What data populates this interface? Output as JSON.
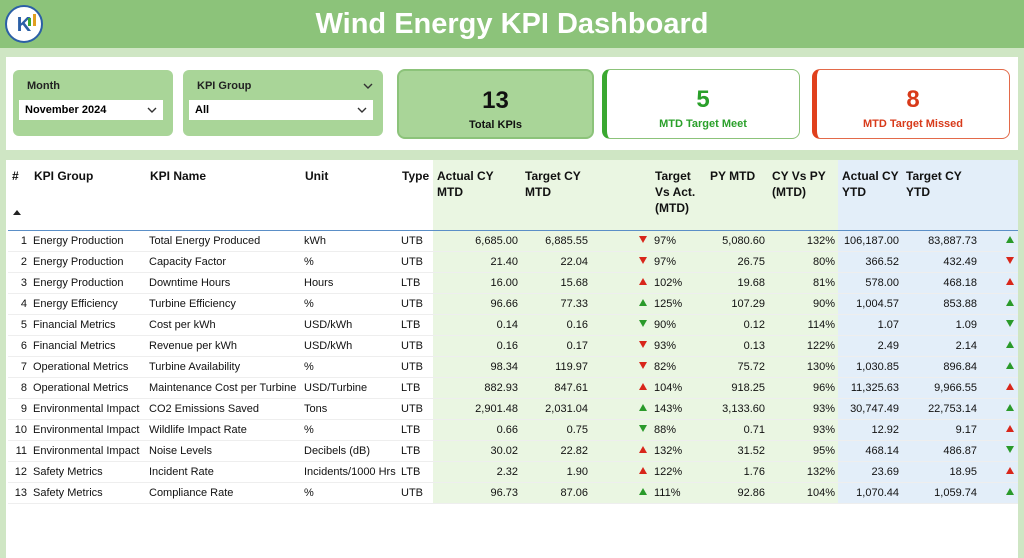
{
  "header": {
    "title": "Wind Energy KPI Dashboard"
  },
  "filters": [
    {
      "label": "Month",
      "value": "November 2024"
    },
    {
      "label": "KPI Group",
      "value": "All"
    }
  ],
  "cards": [
    {
      "value": "13",
      "label": "Total KPIs",
      "style": "total"
    },
    {
      "value": "5",
      "label": "MTD Target Meet",
      "style": "meet"
    },
    {
      "value": "8",
      "label": "MTD Target Missed",
      "style": "missed"
    }
  ],
  "table": {
    "columns": [
      "#",
      "KPI Group",
      "KPI Name",
      "Unit",
      "Type",
      "Actual CY MTD",
      "Target CY MTD",
      "Target Vs Act. (MTD)",
      "PY MTD",
      "CY Vs PY (MTD)",
      "Actual CY YTD",
      "Target CY YTD"
    ],
    "rows": [
      {
        "cells": [
          "1",
          "Energy Production",
          "Total Energy Produced",
          "kWh",
          "UTB",
          "6,685.00",
          "6,885.55",
          "97%",
          "5,080.60",
          "132%",
          "106,187.00",
          "83,887.73"
        ],
        "mtd_icon": "down-red",
        "ytd_icon": "up-green"
      },
      {
        "cells": [
          "2",
          "Energy Production",
          "Capacity Factor",
          "%",
          "UTB",
          "21.40",
          "22.04",
          "97%",
          "26.75",
          "80%",
          "366.52",
          "432.49"
        ],
        "mtd_icon": "down-red",
        "ytd_icon": "down-red"
      },
      {
        "cells": [
          "3",
          "Energy Production",
          "Downtime Hours",
          "Hours",
          "LTB",
          "16.00",
          "15.68",
          "102%",
          "19.68",
          "81%",
          "578.00",
          "468.18"
        ],
        "mtd_icon": "up-red",
        "ytd_icon": "up-red"
      },
      {
        "cells": [
          "4",
          "Energy Efficiency",
          "Turbine Efficiency",
          "%",
          "UTB",
          "96.66",
          "77.33",
          "125%",
          "107.29",
          "90%",
          "1,004.57",
          "853.88"
        ],
        "mtd_icon": "up-green",
        "ytd_icon": "up-green"
      },
      {
        "cells": [
          "5",
          "Financial Metrics",
          "Cost per kWh",
          "USD/kWh",
          "LTB",
          "0.14",
          "0.16",
          "90%",
          "0.12",
          "114%",
          "1.07",
          "1.09"
        ],
        "mtd_icon": "down-green",
        "ytd_icon": "down-green"
      },
      {
        "cells": [
          "6",
          "Financial Metrics",
          "Revenue per kWh",
          "USD/kWh",
          "UTB",
          "0.16",
          "0.17",
          "93%",
          "0.13",
          "122%",
          "2.49",
          "2.14"
        ],
        "mtd_icon": "down-red",
        "ytd_icon": "up-green"
      },
      {
        "cells": [
          "7",
          "Operational Metrics",
          "Turbine Availability",
          "%",
          "UTB",
          "98.34",
          "119.97",
          "82%",
          "75.72",
          "130%",
          "1,030.85",
          "896.84"
        ],
        "mtd_icon": "down-red",
        "ytd_icon": "up-green"
      },
      {
        "cells": [
          "8",
          "Operational Metrics",
          "Maintenance Cost per Turbine",
          "USD/Turbine",
          "LTB",
          "882.93",
          "847.61",
          "104%",
          "918.25",
          "96%",
          "11,325.63",
          "9,966.55"
        ],
        "mtd_icon": "up-red",
        "ytd_icon": "up-red"
      },
      {
        "cells": [
          "9",
          "Environmental Impact",
          "CO2 Emissions Saved",
          "Tons",
          "UTB",
          "2,901.48",
          "2,031.04",
          "143%",
          "3,133.60",
          "93%",
          "30,747.49",
          "22,753.14"
        ],
        "mtd_icon": "up-green",
        "ytd_icon": "up-green"
      },
      {
        "cells": [
          "10",
          "Environmental Impact",
          "Wildlife Impact Rate",
          "%",
          "LTB",
          "0.66",
          "0.75",
          "88%",
          "0.71",
          "93%",
          "12.92",
          "9.17"
        ],
        "mtd_icon": "down-green",
        "ytd_icon": "up-red"
      },
      {
        "cells": [
          "11",
          "Environmental Impact",
          "Noise Levels",
          "Decibels (dB)",
          "LTB",
          "30.02",
          "22.82",
          "132%",
          "31.52",
          "95%",
          "468.14",
          "486.87"
        ],
        "mtd_icon": "up-red",
        "ytd_icon": "down-green"
      },
      {
        "cells": [
          "12",
          "Safety Metrics",
          "Incident Rate",
          "Incidents/1000 Hrs",
          "LTB",
          "2.32",
          "1.90",
          "122%",
          "1.76",
          "132%",
          "23.69",
          "18.95"
        ],
        "mtd_icon": "up-red",
        "ytd_icon": "up-red"
      },
      {
        "cells": [
          "13",
          "Safety Metrics",
          "Compliance Rate",
          "%",
          "UTB",
          "96.73",
          "87.06",
          "111%",
          "92.86",
          "104%",
          "1,070.44",
          "1,059.74"
        ],
        "mtd_icon": "up-green",
        "ytd_icon": "up-green"
      }
    ]
  }
}
